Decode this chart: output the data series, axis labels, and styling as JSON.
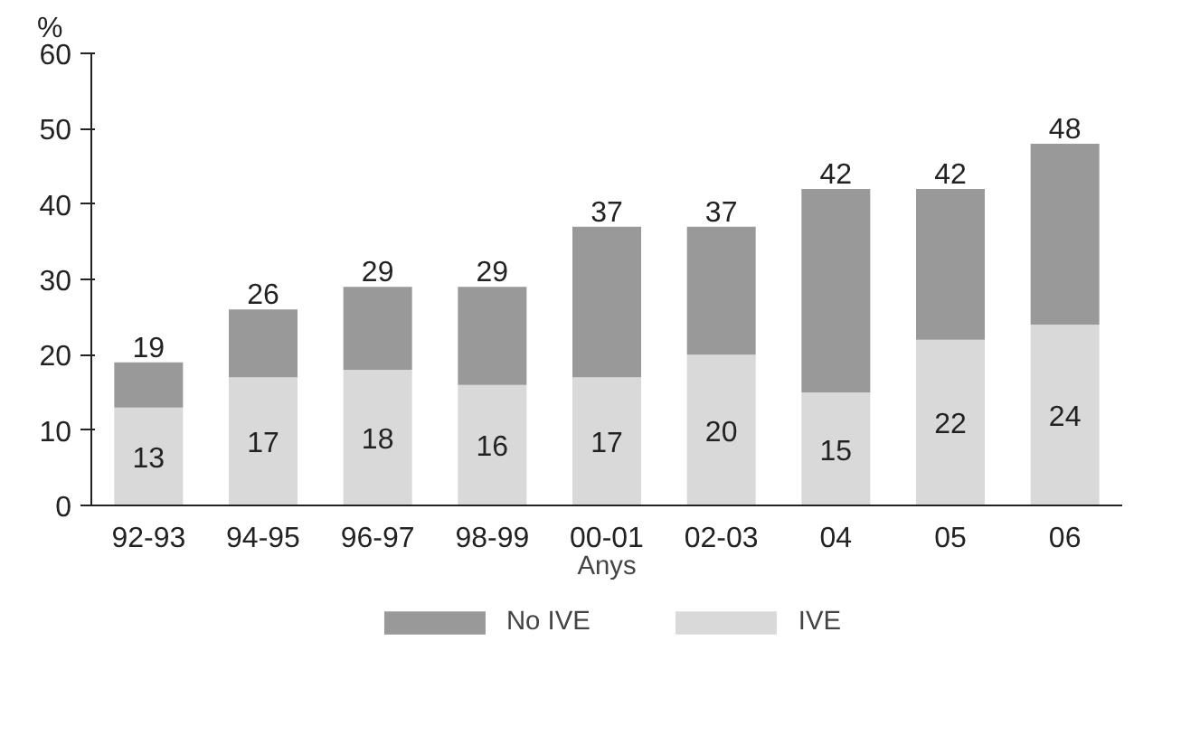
{
  "chart_data": {
    "type": "bar",
    "stacked": true,
    "ylabel": "%",
    "xlabel": "Anys",
    "categories": [
      "92-93",
      "94-95",
      "96-97",
      "98-99",
      "00-01",
      "02-03",
      "04",
      "05",
      "06"
    ],
    "series": [
      {
        "name": "IVE",
        "color": "#d9d9d9",
        "values": [
          13,
          17,
          18,
          16,
          17,
          20,
          15,
          22,
          24
        ],
        "value_labels": [
          "13",
          "17",
          "18",
          "16",
          "17",
          "20",
          "15",
          "22",
          "24"
        ]
      },
      {
        "name": "No IVE",
        "color": "#999999",
        "values": [
          6,
          9,
          11,
          13,
          20,
          17,
          27,
          20,
          24
        ]
      }
    ],
    "totals": [
      "19",
      "26",
      "29",
      "29",
      "37",
      "37",
      "42",
      "42",
      "48"
    ],
    "ylim": [
      0,
      60
    ],
    "yticks": [
      0,
      10,
      20,
      30,
      40,
      50,
      60
    ],
    "grid": false,
    "legend": "bottom"
  }
}
